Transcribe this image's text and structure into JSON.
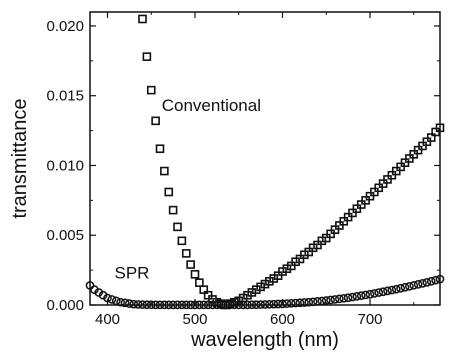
{
  "chart_data": {
    "type": "scatter",
    "xlabel": "wavelength (nm)",
    "ylabel": "transmittance",
    "xlim": [
      380,
      780
    ],
    "ylim": [
      0,
      0.021
    ],
    "xticks": [
      400,
      500,
      600,
      700
    ],
    "yticks": [
      0.0,
      0.005,
      0.01,
      0.015,
      0.02
    ],
    "ytick_labels": [
      "0.000",
      "0.005",
      "0.010",
      "0.015",
      "0.020"
    ],
    "grid": false,
    "colors": {
      "marker": "#111111",
      "axis": "#111111"
    },
    "series": [
      {
        "marker": "square",
        "label": "Conventional",
        "x": [
          440,
          445,
          450,
          455,
          460,
          465,
          470,
          475,
          480,
          485,
          490,
          495,
          500,
          505,
          510,
          515,
          520,
          525,
          530,
          535,
          540,
          545,
          550,
          555,
          560,
          565,
          570,
          575,
          580,
          585,
          590,
          595,
          600,
          605,
          610,
          615,
          620,
          625,
          630,
          635,
          640,
          645,
          650,
          655,
          660,
          665,
          670,
          675,
          680,
          685,
          690,
          695,
          700,
          705,
          710,
          715,
          720,
          725,
          730,
          735,
          740,
          745,
          750,
          755,
          760,
          765,
          770,
          775,
          780
        ],
        "y": [
          0.0205,
          0.0178,
          0.0154,
          0.0132,
          0.0112,
          0.0096,
          0.0081,
          0.0068,
          0.0056,
          0.0046,
          0.0037,
          0.0029,
          0.0022,
          0.0016,
          0.0011,
          0.0007,
          0.0004,
          0.0002,
          0.0001,
          0.0,
          0.0001,
          0.0002,
          0.0003,
          0.0005,
          0.0007,
          0.0009,
          0.0011,
          0.0013,
          0.0015,
          0.0017,
          0.0019,
          0.0021,
          0.0024,
          0.0026,
          0.0028,
          0.0031,
          0.0033,
          0.0036,
          0.0038,
          0.0041,
          0.0043,
          0.0046,
          0.0048,
          0.0051,
          0.0054,
          0.0057,
          0.006,
          0.0063,
          0.0066,
          0.0069,
          0.0072,
          0.0075,
          0.0078,
          0.0081,
          0.0084,
          0.0087,
          0.009,
          0.0093,
          0.0096,
          0.0099,
          0.0102,
          0.0105,
          0.0108,
          0.0111,
          0.0114,
          0.0117,
          0.012,
          0.0124,
          0.0127
        ]
      },
      {
        "marker": "circle",
        "label": "SPR",
        "x": [
          380,
          385,
          390,
          395,
          400,
          405,
          410,
          415,
          420,
          425,
          430,
          435,
          440,
          445,
          450,
          455,
          460,
          465,
          470,
          475,
          480,
          485,
          490,
          495,
          500,
          505,
          510,
          515,
          520,
          525,
          530,
          535,
          540,
          545,
          550,
          555,
          560,
          565,
          570,
          575,
          580,
          585,
          590,
          595,
          600,
          605,
          610,
          615,
          620,
          625,
          630,
          635,
          640,
          645,
          650,
          655,
          660,
          665,
          670,
          675,
          680,
          685,
          690,
          695,
          700,
          705,
          710,
          715,
          720,
          725,
          730,
          735,
          740,
          745,
          750,
          755,
          760,
          765,
          770,
          775,
          780
        ],
        "y": [
          0.0014,
          0.0011,
          0.0009,
          0.0007,
          0.0005,
          0.0004,
          0.0003,
          0.0002,
          0.00015,
          0.0001,
          6e-05,
          4e-05,
          3e-05,
          2e-05,
          2e-05,
          1e-05,
          1e-05,
          1e-05,
          1e-05,
          1e-05,
          1e-05,
          1e-05,
          1e-05,
          1e-05,
          1e-05,
          1e-05,
          1e-05,
          1e-05,
          1e-05,
          1e-05,
          1e-05,
          1e-05,
          1e-05,
          1e-05,
          1e-05,
          1e-05,
          1e-05,
          2e-05,
          2e-05,
          3e-05,
          4e-05,
          5e-05,
          6e-05,
          7e-05,
          8e-05,
          0.0001,
          0.00012,
          0.00014,
          0.00016,
          0.00018,
          0.0002,
          0.00023,
          0.00026,
          0.00029,
          0.00032,
          0.00036,
          0.0004,
          0.00044,
          0.00048,
          0.00052,
          0.00057,
          0.00062,
          0.00067,
          0.00072,
          0.00077,
          0.00083,
          0.00089,
          0.00095,
          0.00101,
          0.00107,
          0.00113,
          0.0012,
          0.00127,
          0.00134,
          0.00141,
          0.00148,
          0.00155,
          0.00162,
          0.0017,
          0.00178,
          0.00186
        ]
      }
    ],
    "annotations": [
      {
        "text": "Conventional",
        "x": 462,
        "y": 0.0139
      },
      {
        "text": "SPR",
        "x": 408,
        "y": 0.0019
      }
    ]
  }
}
